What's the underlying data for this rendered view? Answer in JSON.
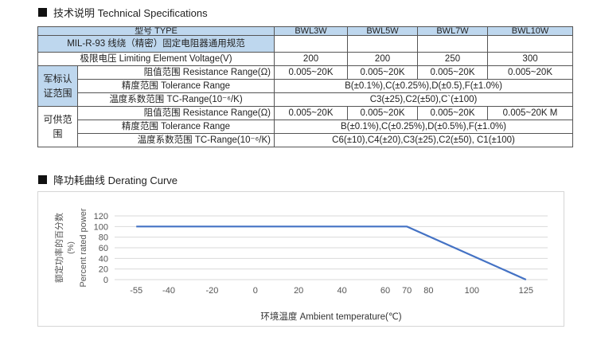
{
  "section1": {
    "title": "技术说明 Technical Specifications"
  },
  "table": {
    "header": {
      "type_label": "型号 TYPE",
      "models": [
        "BWL3W",
        "BWL5W",
        "BWL7W",
        "BWL10W"
      ]
    },
    "standard_name": "MIL-R-93 线绕（精密）固定电阻器通用规范",
    "voltage": {
      "label": "极限电压  Limiting Element Voltage(V)",
      "values": [
        "200",
        "200",
        "250",
        "300"
      ]
    },
    "military": {
      "group_label": "军标认证范围",
      "resistance_label": "阻值范围 Resistance Range(Ω)",
      "resistance_values": [
        "0.005~20K",
        "0.005~20K",
        "0.005~20K",
        "0.005~20K"
      ],
      "tolerance_label": "精度范围  Tolerance Range",
      "tolerance_value": "B(±0.1%),C(±0.25%),D(±0.5),F(±1.0%)",
      "tc_label": "温度系数范围 TC-Range(10⁻⁶/K)",
      "tc_value": "C3(±25),C2(±50),C`(±100)"
    },
    "available": {
      "group_label": "可供范围",
      "resistance_label": "阻值范围  Resistance Range(Ω)",
      "resistance_values": [
        "0.005~20K",
        "0.005~20K",
        "0.005~20K",
        "0.005~20K M"
      ],
      "tolerance_label": "精度范围  Tolerance Range",
      "tolerance_value": "B(±0.1%),C(±0.25%),D(±0.5%),F(±1.0%)",
      "tc_label": "温度系数范围 TC-Range(10⁻⁶/K)",
      "tc_value": "C6(±10),C4(±20),C3(±25),C2(±50), C1(±100)"
    }
  },
  "section2": {
    "title": "降功耗曲线 Derating Curve"
  },
  "chart_data": {
    "type": "line",
    "xlabel": "环境温度 Ambient temperature(℃)",
    "ylabel_cn": "额定功率的百分数",
    "ylabel_unit": "(%)",
    "ylabel_en": "Percent rated power",
    "xlim": [
      -65,
      135
    ],
    "ylim": [
      0,
      120
    ],
    "x_ticks": [
      -55,
      -40,
      -20,
      0,
      20,
      40,
      60,
      70,
      80,
      100,
      125
    ],
    "y_ticks": [
      0,
      20,
      40,
      60,
      80,
      100,
      120
    ],
    "grid": true,
    "series": [
      {
        "x": [
          -55,
          70,
          125
        ],
        "y": [
          100,
          100,
          0
        ],
        "color": "#4472c4"
      }
    ]
  }
}
